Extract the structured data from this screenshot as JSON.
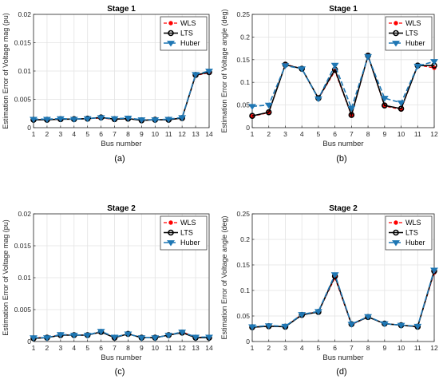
{
  "figure": {
    "panel_captions": [
      "(a)",
      "(b)",
      "(c)",
      "(d)"
    ]
  },
  "chart_data": [
    {
      "type": "line",
      "title": "Stage 1",
      "xlabel": "Bus number",
      "ylabel": "Estimation Error of Voltage mag (pu)",
      "x": [
        1,
        2,
        3,
        4,
        5,
        6,
        7,
        8,
        9,
        10,
        11,
        12,
        13,
        14
      ],
      "xlim": [
        1,
        14
      ],
      "ylim": [
        0,
        0.02
      ],
      "xticks": [
        "1",
        "2",
        "3",
        "4",
        "5",
        "6",
        "7",
        "8",
        "9",
        "10",
        "11",
        "12",
        "13",
        "14"
      ],
      "yticks": [
        "0",
        "0.005",
        "0.01",
        "0.015",
        "0.02"
      ],
      "grid": true,
      "legend": "top-right",
      "series": [
        {
          "name": "WLS",
          "color": "#ff0000",
          "values": [
            0.0014,
            0.0014,
            0.0015,
            0.0015,
            0.0016,
            0.0017,
            0.0015,
            0.0016,
            0.0013,
            0.0014,
            0.0014,
            0.0017,
            0.0092,
            0.0097
          ]
        },
        {
          "name": "LTS",
          "color": "#000000",
          "values": [
            0.0014,
            0.0014,
            0.0015,
            0.0015,
            0.0016,
            0.0018,
            0.0015,
            0.0016,
            0.0013,
            0.0014,
            0.0014,
            0.0017,
            0.0093,
            0.0098
          ]
        },
        {
          "name": "Huber",
          "color": "#1f77b4",
          "values": [
            0.0015,
            0.0015,
            0.0016,
            0.0015,
            0.0016,
            0.0018,
            0.0016,
            0.0017,
            0.0014,
            0.0014,
            0.0015,
            0.0018,
            0.0094,
            0.01
          ]
        }
      ]
    },
    {
      "type": "line",
      "title": "Stage 1",
      "xlabel": "Bus number",
      "ylabel": "Estimation Error of Voltage angle (deg)",
      "x": [
        1,
        2,
        3,
        4,
        5,
        6,
        7,
        8,
        9,
        10,
        11,
        12
      ],
      "xlim": [
        1,
        12
      ],
      "ylim": [
        0,
        0.25
      ],
      "xticks": [
        "1",
        "2",
        "3",
        "4",
        "5",
        "6",
        "7",
        "8",
        "9",
        "10",
        "11",
        "12"
      ],
      "yticks": [
        "0",
        "0.05",
        "0.1",
        "0.15",
        "0.2",
        "0.25"
      ],
      "grid": true,
      "legend": "top-right",
      "series": [
        {
          "name": "WLS",
          "color": "#ff0000",
          "values": [
            0.025,
            0.033,
            0.14,
            0.13,
            0.064,
            0.125,
            0.027,
            0.158,
            0.048,
            0.04,
            0.138,
            0.132
          ]
        },
        {
          "name": "LTS",
          "color": "#000000",
          "values": [
            0.026,
            0.034,
            0.139,
            0.13,
            0.065,
            0.128,
            0.028,
            0.159,
            0.049,
            0.042,
            0.137,
            0.137
          ]
        },
        {
          "name": "Huber",
          "color": "#1f77b4",
          "values": [
            0.047,
            0.05,
            0.137,
            0.13,
            0.064,
            0.138,
            0.043,
            0.157,
            0.065,
            0.055,
            0.136,
            0.146
          ]
        }
      ]
    },
    {
      "type": "line",
      "title": "Stage 2",
      "xlabel": "Bus number",
      "ylabel": "Estimation Error of Voltage mag (pu)",
      "x": [
        1,
        2,
        3,
        4,
        5,
        6,
        7,
        8,
        9,
        10,
        11,
        12,
        13,
        14
      ],
      "xlim": [
        1,
        14
      ],
      "ylim": [
        0,
        0.02
      ],
      "xticks": [
        "1",
        "2",
        "3",
        "4",
        "5",
        "6",
        "7",
        "8",
        "9",
        "10",
        "11",
        "12",
        "13",
        "14"
      ],
      "yticks": [
        "0",
        "0.005",
        "0.01",
        "0.015",
        "0.02"
      ],
      "grid": true,
      "legend": "top-right",
      "series": [
        {
          "name": "WLS",
          "color": "#ff0000",
          "values": [
            0.0006,
            0.0006,
            0.0011,
            0.001,
            0.001,
            0.0015,
            0.0006,
            0.0012,
            0.0006,
            0.0006,
            0.001,
            0.0015,
            0.0007,
            0.0006
          ]
        },
        {
          "name": "LTS",
          "color": "#000000",
          "values": [
            0.0005,
            0.0006,
            0.001,
            0.001,
            0.001,
            0.0015,
            0.0006,
            0.0012,
            0.0006,
            0.0006,
            0.001,
            0.0014,
            0.0006,
            0.0006
          ]
        },
        {
          "name": "Huber",
          "color": "#1f77b4",
          "values": [
            0.0006,
            0.0006,
            0.0011,
            0.001,
            0.001,
            0.0016,
            0.0007,
            0.0012,
            0.0006,
            0.0006,
            0.001,
            0.0015,
            0.0007,
            0.0007
          ]
        }
      ]
    },
    {
      "type": "line",
      "title": "Stage 2",
      "xlabel": "Bus number",
      "ylabel": "Estimation Error of Voltage angle (deg)",
      "x": [
        1,
        2,
        3,
        4,
        5,
        6,
        7,
        8,
        9,
        10,
        11,
        12
      ],
      "xlim": [
        1,
        12
      ],
      "ylim": [
        0,
        0.25
      ],
      "xticks": [
        "1",
        "2",
        "3",
        "4",
        "5",
        "6",
        "7",
        "8",
        "9",
        "10",
        "11",
        "12"
      ],
      "yticks": [
        "0",
        "0.05",
        "0.1",
        "0.15",
        "0.2",
        "0.25"
      ],
      "grid": true,
      "legend": "top-right",
      "series": [
        {
          "name": "WLS",
          "color": "#ff0000",
          "values": [
            0.028,
            0.03,
            0.029,
            0.053,
            0.058,
            0.125,
            0.033,
            0.048,
            0.035,
            0.032,
            0.029,
            0.135
          ]
        },
        {
          "name": "LTS",
          "color": "#000000",
          "values": [
            0.028,
            0.03,
            0.029,
            0.052,
            0.058,
            0.128,
            0.034,
            0.048,
            0.035,
            0.032,
            0.029,
            0.138
          ]
        },
        {
          "name": "Huber",
          "color": "#1f77b4",
          "values": [
            0.029,
            0.031,
            0.03,
            0.053,
            0.059,
            0.131,
            0.034,
            0.049,
            0.035,
            0.032,
            0.03,
            0.14
          ]
        }
      ]
    }
  ]
}
